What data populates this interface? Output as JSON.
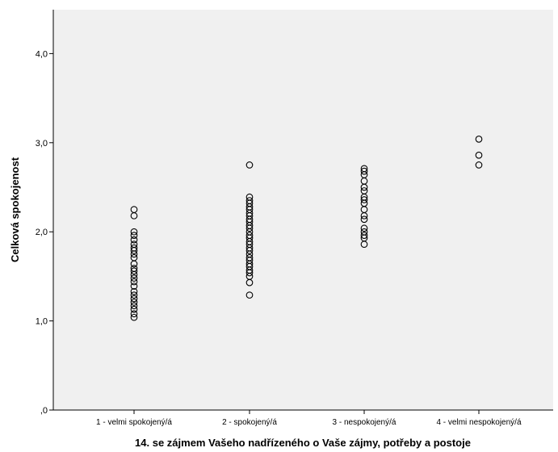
{
  "chart_data": {
    "type": "scatter",
    "title": "",
    "xlabel": "14. se zájmem Vašeho nadřízeného o Vaše zájmy, potřeby a postoje",
    "ylabel": "Celková spokojenost",
    "categories": [
      "1 - velmi spokojený/á",
      "2 - spokojený/á",
      "3 - nespokojený/á",
      "4 - velmi nespokojený/á"
    ],
    "ylim": [
      0,
      4.4
    ],
    "yticks": [
      0,
      1,
      2,
      3,
      4
    ],
    "ytick_labels": [
      ",0",
      "1,0",
      "2,0",
      "3,0",
      "4,0"
    ],
    "grid": false,
    "marker": "hollow-circle",
    "colors": {
      "plot_background": "#f0f0f0",
      "marker": "#000000",
      "axis": "#000000"
    },
    "series": [
      {
        "values": [
          [
            1,
            2.25
          ],
          [
            1,
            2.18
          ],
          [
            1,
            2.0
          ],
          [
            1,
            1.96
          ],
          [
            1,
            1.91
          ],
          [
            1,
            1.86
          ],
          [
            1,
            1.82
          ],
          [
            1,
            1.79
          ],
          [
            1,
            1.75
          ],
          [
            1,
            1.71
          ],
          [
            1,
            1.64
          ],
          [
            1,
            1.59
          ],
          [
            1,
            1.56
          ],
          [
            1,
            1.52
          ],
          [
            1,
            1.48
          ],
          [
            1,
            1.44
          ],
          [
            1,
            1.39
          ],
          [
            1,
            1.33
          ],
          [
            1,
            1.29
          ],
          [
            1,
            1.25
          ],
          [
            1,
            1.21
          ],
          [
            1,
            1.17
          ],
          [
            1,
            1.13
          ],
          [
            1,
            1.08
          ],
          [
            1,
            1.04
          ],
          [
            2,
            2.75
          ],
          [
            2,
            2.39
          ],
          [
            2,
            2.35
          ],
          [
            2,
            2.32
          ],
          [
            2,
            2.28
          ],
          [
            2,
            2.25
          ],
          [
            2,
            2.21
          ],
          [
            2,
            2.18
          ],
          [
            2,
            2.14
          ],
          [
            2,
            2.11
          ],
          [
            2,
            2.07
          ],
          [
            2,
            2.04
          ],
          [
            2,
            2.0
          ],
          [
            2,
            1.96
          ],
          [
            2,
            1.93
          ],
          [
            2,
            1.89
          ],
          [
            2,
            1.86
          ],
          [
            2,
            1.82
          ],
          [
            2,
            1.79
          ],
          [
            2,
            1.75
          ],
          [
            2,
            1.71
          ],
          [
            2,
            1.68
          ],
          [
            2,
            1.64
          ],
          [
            2,
            1.61
          ],
          [
            2,
            1.57
          ],
          [
            2,
            1.54
          ],
          [
            2,
            1.5
          ],
          [
            2,
            1.43
          ],
          [
            2,
            1.29
          ],
          [
            3,
            2.71
          ],
          [
            3,
            2.68
          ],
          [
            3,
            2.64
          ],
          [
            3,
            2.57
          ],
          [
            3,
            2.5
          ],
          [
            3,
            2.46
          ],
          [
            3,
            2.39
          ],
          [
            3,
            2.36
          ],
          [
            3,
            2.32
          ],
          [
            3,
            2.25
          ],
          [
            3,
            2.18
          ],
          [
            3,
            2.14
          ],
          [
            3,
            2.04
          ],
          [
            3,
            2.0
          ],
          [
            3,
            1.96
          ],
          [
            3,
            1.93
          ],
          [
            3,
            1.86
          ],
          [
            4,
            3.04
          ],
          [
            4,
            2.86
          ],
          [
            4,
            2.75
          ]
        ]
      }
    ]
  }
}
